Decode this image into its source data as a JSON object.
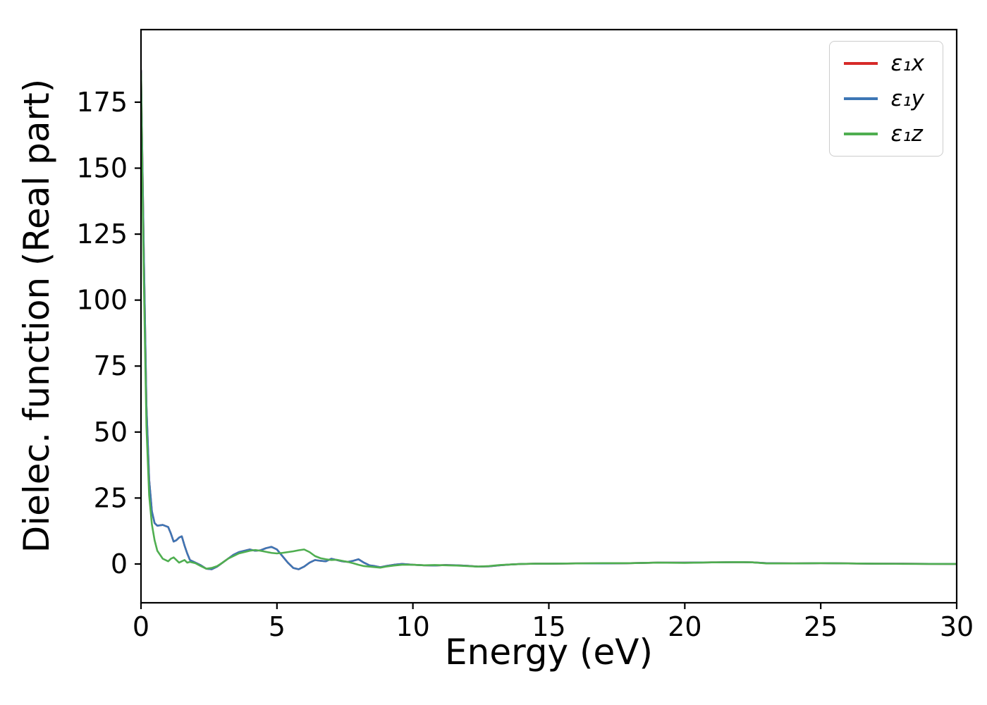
{
  "figure": {
    "background": "#ffffff"
  },
  "chart_data": {
    "type": "line",
    "title": "",
    "xlabel": "Energy (eV)",
    "ylabel": "Dielec. function (Real part)",
    "xlim": [
      0,
      30
    ],
    "ylim": [
      -14.7,
      202.5
    ],
    "xticks": [
      0,
      5,
      10,
      15,
      20,
      25,
      30
    ],
    "yticks": [
      0,
      25,
      50,
      75,
      100,
      125,
      150,
      175
    ],
    "grid": false,
    "legend_position": "upper right",
    "x": [
      0,
      0.1,
      0.2,
      0.3,
      0.4,
      0.5,
      0.6,
      0.8,
      1.0,
      1.1,
      1.2,
      1.3,
      1.4,
      1.5,
      1.6,
      1.7,
      1.8,
      2.0,
      2.2,
      2.4,
      2.6,
      2.8,
      3.0,
      3.2,
      3.4,
      3.6,
      3.8,
      4.0,
      4.2,
      4.4,
      4.6,
      4.8,
      5.0,
      5.2,
      5.4,
      5.6,
      5.8,
      6.0,
      6.2,
      6.4,
      6.6,
      6.8,
      7.0,
      7.2,
      7.4,
      7.6,
      7.8,
      8.0,
      8.2,
      8.4,
      8.6,
      8.8,
      9.0,
      9.3,
      9.6,
      10.0,
      10.4,
      10.8,
      11.2,
      11.6,
      12.0,
      12.4,
      12.8,
      13.2,
      13.6,
      14.0,
      14.5,
      15.0,
      16.0,
      17.0,
      18.0,
      19.0,
      20.0,
      21.0,
      22.0,
      22.5,
      23.0,
      24.0,
      25.0,
      26.0,
      27.0,
      28.0,
      29.0,
      30.0
    ],
    "series": [
      {
        "label": "ε₁x",
        "color": "#d62a29",
        "values": [
          187,
          120,
          60,
          32,
          20,
          15.5,
          14.5,
          14.8,
          14.0,
          11.5,
          8.5,
          9.0,
          10.0,
          10.5,
          7.0,
          4.0,
          1.5,
          0.5,
          -0.5,
          -1.8,
          -2.0,
          -1.0,
          0.5,
          2.0,
          3.5,
          4.5,
          5.0,
          5.5,
          5.0,
          5.2,
          6.0,
          6.5,
          5.5,
          3.0,
          0.5,
          -1.5,
          -2.0,
          -1.0,
          0.5,
          1.5,
          1.2,
          1.0,
          2.0,
          1.5,
          1.0,
          0.8,
          1.2,
          1.8,
          0.5,
          -0.5,
          -0.8,
          -1.2,
          -0.8,
          -0.3,
          0.0,
          -0.3,
          -0.5,
          -0.6,
          -0.4,
          -0.5,
          -0.7,
          -1.0,
          -0.9,
          -0.5,
          -0.2,
          0.0,
          0.1,
          0.1,
          0.2,
          0.2,
          0.3,
          0.5,
          0.5,
          0.6,
          0.7,
          0.6,
          0.3,
          0.2,
          0.3,
          0.2,
          0.1,
          0.1,
          0.05,
          0.0
        ]
      },
      {
        "label": "ε₁y",
        "color": "#3d76b5",
        "values": [
          187,
          120,
          60,
          32,
          20,
          15.5,
          14.5,
          14.8,
          14.0,
          11.5,
          8.5,
          9.0,
          10.0,
          10.5,
          7.0,
          4.0,
          1.5,
          0.5,
          -0.5,
          -1.8,
          -2.0,
          -1.0,
          0.5,
          2.0,
          3.5,
          4.5,
          5.0,
          5.5,
          5.0,
          5.2,
          6.0,
          6.5,
          5.5,
          3.0,
          0.5,
          -1.5,
          -2.0,
          -1.0,
          0.5,
          1.5,
          1.2,
          1.0,
          2.0,
          1.5,
          1.0,
          0.8,
          1.2,
          1.8,
          0.5,
          -0.5,
          -0.8,
          -1.2,
          -0.8,
          -0.3,
          0.0,
          -0.3,
          -0.5,
          -0.6,
          -0.4,
          -0.5,
          -0.7,
          -1.0,
          -0.9,
          -0.5,
          -0.2,
          0.0,
          0.1,
          0.1,
          0.2,
          0.2,
          0.3,
          0.5,
          0.5,
          0.6,
          0.7,
          0.6,
          0.3,
          0.2,
          0.3,
          0.2,
          0.1,
          0.1,
          0.05,
          0.0
        ]
      },
      {
        "label": "ε₁z",
        "color": "#4fae50",
        "values": [
          186,
          110,
          52,
          26,
          15,
          9,
          5,
          2.0,
          1.0,
          2.0,
          2.5,
          1.5,
          0.5,
          1.0,
          1.5,
          0.5,
          0.8,
          0.3,
          -0.8,
          -1.8,
          -1.5,
          -0.8,
          0.5,
          2.0,
          3.0,
          4.0,
          4.5,
          5.0,
          5.3,
          5.0,
          4.6,
          4.2,
          4.0,
          4.2,
          4.5,
          4.8,
          5.2,
          5.5,
          4.5,
          3.0,
          2.2,
          1.8,
          1.5,
          1.6,
          1.2,
          0.8,
          0.3,
          -0.3,
          -0.8,
          -1.0,
          -1.2,
          -1.4,
          -1.0,
          -0.6,
          -0.3,
          -0.3,
          -0.5,
          -0.4,
          -0.5,
          -0.6,
          -0.8,
          -1.0,
          -0.8,
          -0.4,
          -0.2,
          0.0,
          0.1,
          0.1,
          0.2,
          0.3,
          0.3,
          0.5,
          0.4,
          0.6,
          0.7,
          0.6,
          0.2,
          0.2,
          0.3,
          0.2,
          0.1,
          0.05,
          0.0,
          0.0
        ]
      }
    ]
  }
}
